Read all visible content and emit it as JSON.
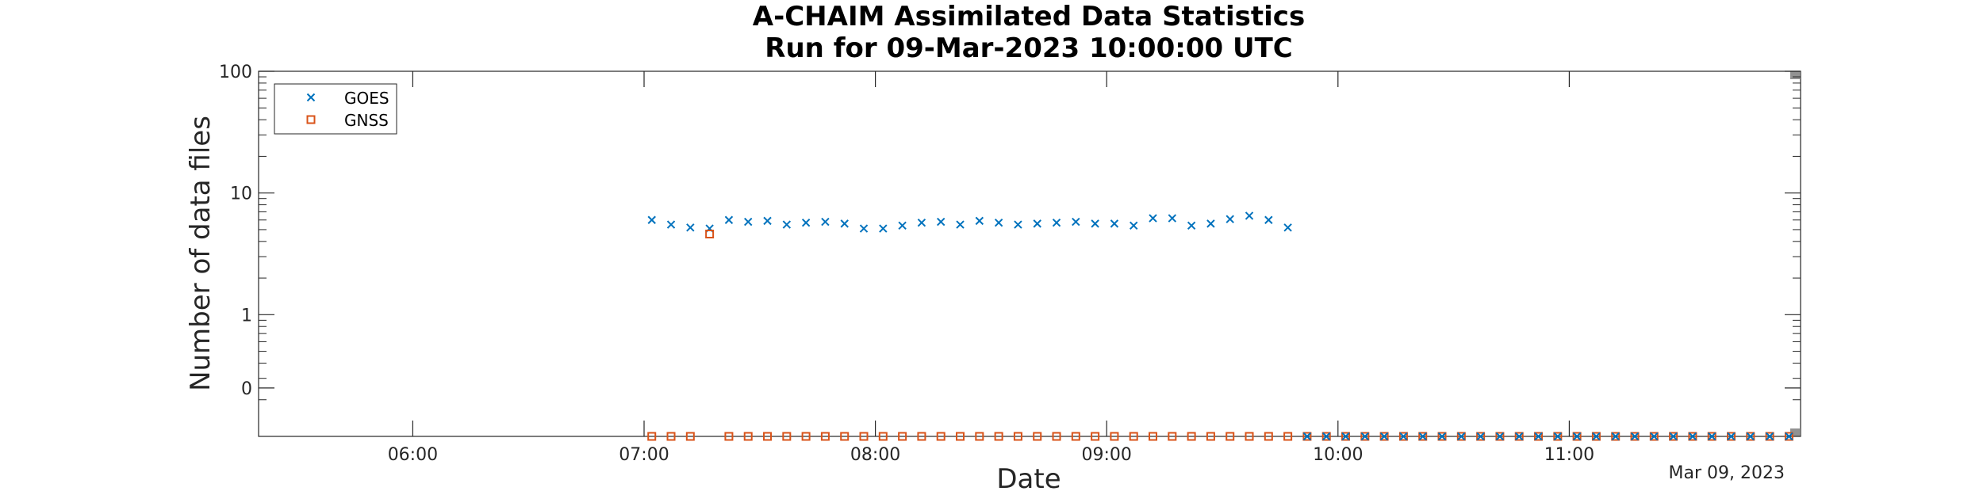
{
  "chart_data": {
    "type": "scatter",
    "title": [
      "A-CHAIM Assimilated Data Statistics",
      "Run for 09-Mar-2023 10:00:00 UTC"
    ],
    "xlabel": "Date",
    "ylabel": "Number of data files",
    "date_label": "Mar 09, 2023",
    "x_axis": {
      "min": "05:20",
      "max": "12:00",
      "ticks": [
        "06:00",
        "07:00",
        "08:00",
        "09:00",
        "10:00",
        "11:00"
      ]
    },
    "y_axis": {
      "scale": "log",
      "min": 0.1,
      "max": 100,
      "ticks": [
        {
          "value": 0.25,
          "label": "0"
        },
        {
          "value": 1,
          "label": "1"
        },
        {
          "value": 10,
          "label": "10"
        },
        {
          "value": 100,
          "label": "100"
        }
      ]
    },
    "grid": false,
    "legend": "top-left",
    "series": [
      {
        "name": "GOES",
        "marker": "x",
        "color": "#0072BD",
        "points": [
          [
            "07:02",
            6
          ],
          [
            "07:07",
            5.5
          ],
          [
            "07:12",
            5.2
          ],
          [
            "07:17",
            5.1
          ],
          [
            "07:22",
            6
          ],
          [
            "07:27",
            5.8
          ],
          [
            "07:32",
            5.9
          ],
          [
            "07:37",
            5.5
          ],
          [
            "07:42",
            5.7
          ],
          [
            "07:47",
            5.8
          ],
          [
            "07:52",
            5.6
          ],
          [
            "07:57",
            5.1
          ],
          [
            "08:02",
            5.1
          ],
          [
            "08:07",
            5.4
          ],
          [
            "08:12",
            5.7
          ],
          [
            "08:17",
            5.8
          ],
          [
            "08:22",
            5.5
          ],
          [
            "08:27",
            5.9
          ],
          [
            "08:32",
            5.7
          ],
          [
            "08:37",
            5.5
          ],
          [
            "08:42",
            5.6
          ],
          [
            "08:47",
            5.7
          ],
          [
            "08:52",
            5.8
          ],
          [
            "08:57",
            5.6
          ],
          [
            "09:02",
            5.6
          ],
          [
            "09:07",
            5.4
          ],
          [
            "09:12",
            6.2
          ],
          [
            "09:17",
            6.2
          ],
          [
            "09:22",
            5.4
          ],
          [
            "09:27",
            5.6
          ],
          [
            "09:32",
            6.1
          ],
          [
            "09:37",
            6.5
          ],
          [
            "09:42",
            6
          ],
          [
            "09:47",
            5.2
          ]
        ]
      },
      {
        "name": "GNSS",
        "marker": "square",
        "color": "#D95319",
        "points": [
          [
            "07:02",
            0
          ],
          [
            "07:07",
            0
          ],
          [
            "07:12",
            0
          ],
          [
            "07:17",
            4.6
          ],
          [
            "07:22",
            0
          ],
          [
            "07:27",
            0
          ],
          [
            "07:32",
            0
          ],
          [
            "07:37",
            0
          ],
          [
            "07:42",
            0
          ],
          [
            "07:47",
            0
          ],
          [
            "07:52",
            0
          ],
          [
            "07:57",
            0
          ],
          [
            "08:02",
            0
          ],
          [
            "08:07",
            0
          ],
          [
            "08:12",
            0
          ],
          [
            "08:17",
            0
          ],
          [
            "08:22",
            0
          ],
          [
            "08:27",
            0
          ],
          [
            "08:32",
            0
          ],
          [
            "08:37",
            0
          ],
          [
            "08:42",
            0
          ],
          [
            "08:47",
            0
          ],
          [
            "08:52",
            0
          ],
          [
            "08:57",
            0
          ],
          [
            "09:02",
            0
          ],
          [
            "09:07",
            0
          ],
          [
            "09:12",
            0
          ],
          [
            "09:17",
            0
          ],
          [
            "09:22",
            0
          ],
          [
            "09:27",
            0
          ],
          [
            "09:32",
            0
          ],
          [
            "09:37",
            0
          ],
          [
            "09:42",
            0
          ],
          [
            "09:47",
            0
          ],
          [
            "09:52",
            0
          ],
          [
            "09:57",
            0
          ],
          [
            "10:02",
            0
          ],
          [
            "10:07",
            0
          ],
          [
            "10:12",
            0
          ],
          [
            "10:17",
            0
          ],
          [
            "10:22",
            0
          ],
          [
            "10:27",
            0
          ],
          [
            "10:32",
            0
          ],
          [
            "10:37",
            0
          ],
          [
            "10:42",
            0
          ],
          [
            "10:47",
            0
          ],
          [
            "10:52",
            0
          ],
          [
            "10:57",
            0
          ],
          [
            "11:02",
            0
          ],
          [
            "11:07",
            0
          ],
          [
            "11:12",
            0
          ],
          [
            "11:17",
            0
          ],
          [
            "11:22",
            0
          ],
          [
            "11:27",
            0
          ],
          [
            "11:32",
            0
          ],
          [
            "11:37",
            0
          ],
          [
            "11:42",
            0
          ],
          [
            "11:47",
            0
          ],
          [
            "11:52",
            0
          ],
          [
            "11:57",
            0
          ]
        ]
      },
      {
        "name": "",
        "marker": "x",
        "color": "#0072BD",
        "points": [
          [
            "09:52",
            0
          ],
          [
            "09:57",
            0
          ],
          [
            "10:02",
            0
          ],
          [
            "10:07",
            0
          ],
          [
            "10:12",
            0
          ],
          [
            "10:17",
            0
          ],
          [
            "10:22",
            0
          ],
          [
            "10:27",
            0
          ],
          [
            "10:32",
            0
          ],
          [
            "10:37",
            0
          ],
          [
            "10:42",
            0
          ],
          [
            "10:47",
            0
          ],
          [
            "10:52",
            0
          ],
          [
            "10:57",
            0
          ],
          [
            "11:02",
            0
          ],
          [
            "11:07",
            0
          ],
          [
            "11:12",
            0
          ],
          [
            "11:17",
            0
          ],
          [
            "11:22",
            0
          ],
          [
            "11:27",
            0
          ],
          [
            "11:32",
            0
          ],
          [
            "11:37",
            0
          ],
          [
            "11:42",
            0
          ],
          [
            "11:47",
            0
          ],
          [
            "11:52",
            0
          ],
          [
            "11:57",
            0
          ]
        ]
      }
    ]
  }
}
